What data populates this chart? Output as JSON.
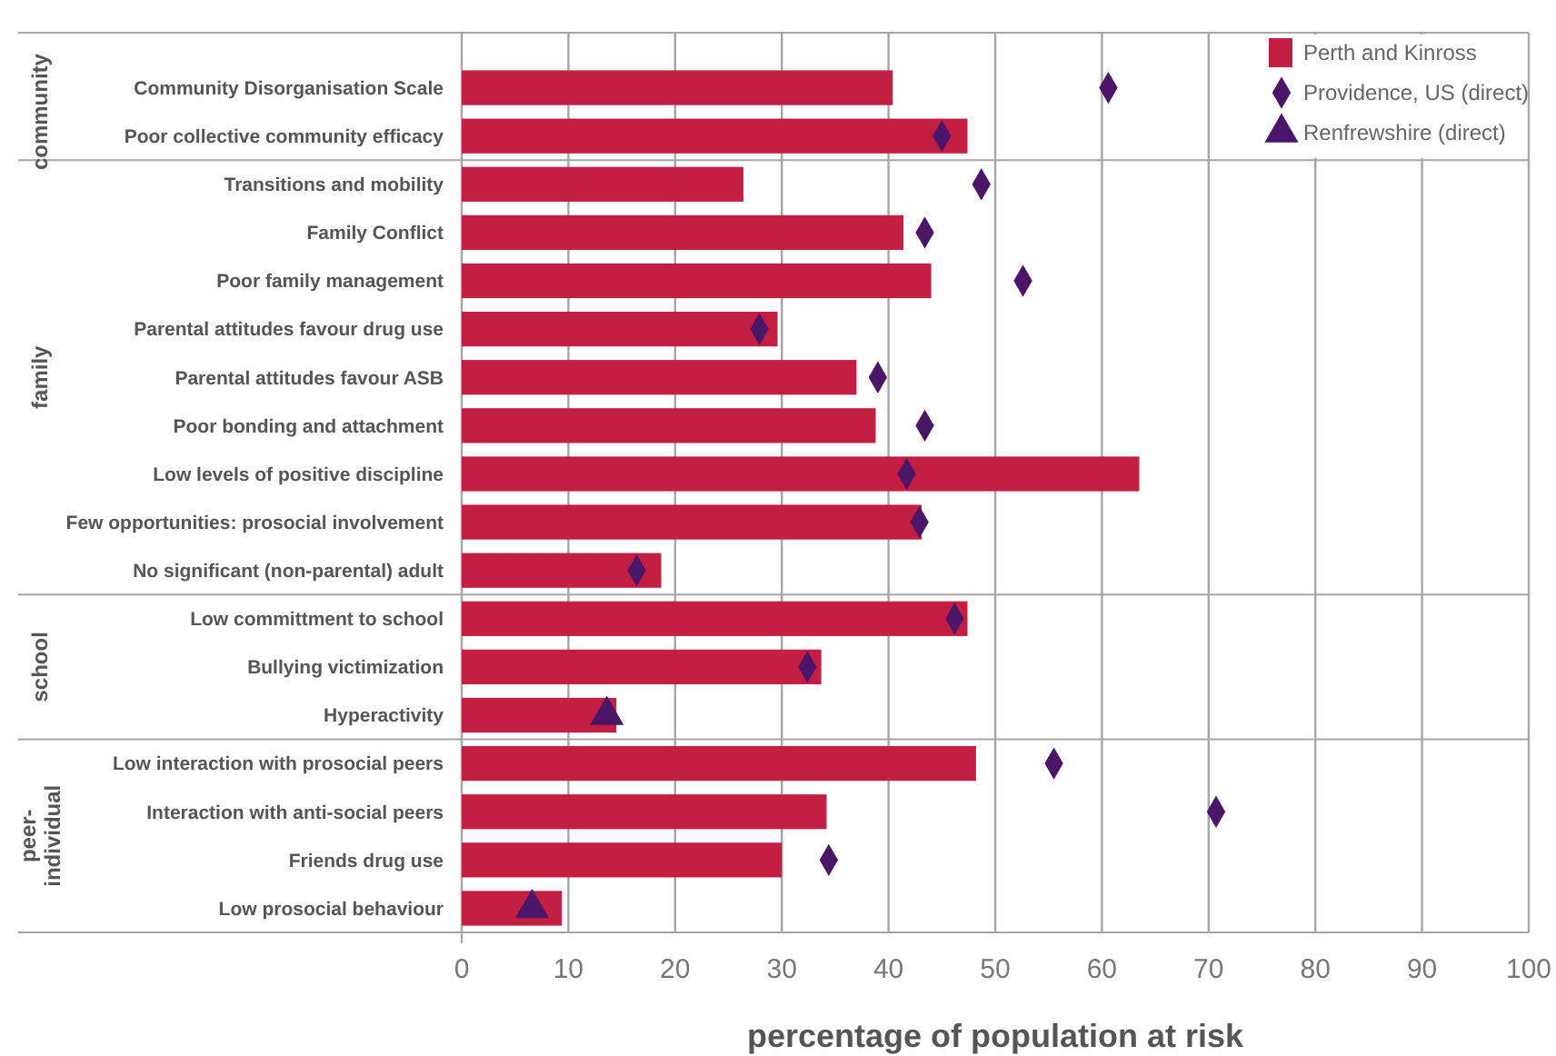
{
  "chart_data": {
    "type": "bar",
    "orientation": "horizontal",
    "xlabel": "percentage of population at risk",
    "categories": [
      "Community Disorganisation Scale",
      "Poor collective community efficacy",
      "Transitions and mobility",
      "Family Conflict",
      "Poor family management",
      "Parental attitudes favour drug use",
      "Parental attitudes favour ASB",
      "Poor bonding and attachment",
      "Low levels of positive discipline",
      "Few opportunities: prosocial involvement",
      "No significant (non-parental) adult",
      "Low committment to school",
      "Bullying victimization",
      "Hyperactivity",
      "Low interaction with prosocial peers",
      "Interaction with anti-social peers",
      "Friends drug use",
      "Low prosocial behaviour"
    ],
    "series": [
      {
        "name": "Perth and Kinross",
        "color": "#c41e43",
        "values": [
          40.4,
          47.4,
          26.4,
          41.4,
          44,
          29.6,
          37,
          38.8,
          63.5,
          43.1,
          18.7,
          47.4,
          33.7,
          14.5,
          48.2,
          34.2,
          30,
          9.4
        ]
      },
      {
        "name": "Providence, US (direct)",
        "type": "scatter",
        "marker": "diamond",
        "color": "#4b1568",
        "values": [
          60.6,
          45,
          48.7,
          43.4,
          52.6,
          27.9,
          39,
          43.4,
          41.7,
          42.9,
          16.4,
          46.2,
          32.4,
          null,
          55.5,
          70.7,
          34.4,
          null
        ]
      },
      {
        "name": "Renfrewshire (direct)",
        "type": "scatter",
        "marker": "triangle",
        "color": "#4b1568",
        "values": [
          null,
          null,
          null,
          null,
          null,
          null,
          null,
          null,
          null,
          null,
          null,
          null,
          null,
          13.6,
          null,
          null,
          null,
          6.6
        ]
      }
    ],
    "annotations": [
      "community",
      "family",
      "school",
      "peer-individual"
    ],
    "xlim": [
      0,
      100
    ],
    "xticks": [
      0,
      10,
      20,
      30,
      40,
      50,
      60,
      70,
      80,
      90,
      100
    ],
    "grid": "x",
    "legend": "top right"
  }
}
